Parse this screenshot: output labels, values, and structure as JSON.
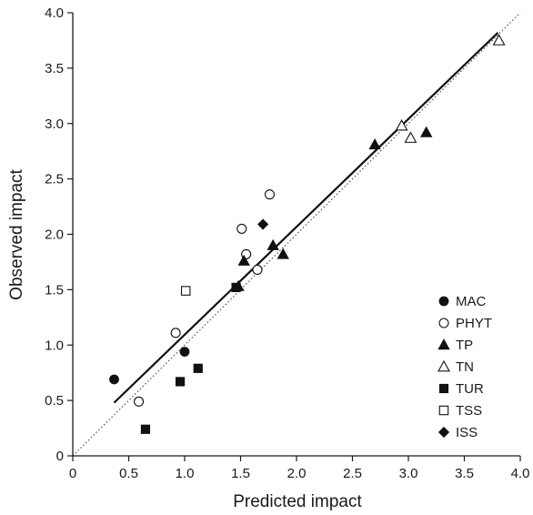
{
  "chart_data": {
    "type": "scatter",
    "xlabel": "Predicted impact",
    "ylabel": "Observed impact",
    "xlim": [
      0,
      4.0
    ],
    "ylim": [
      0,
      4.0
    ],
    "x_ticks": [
      "0",
      "0.5",
      "1.0",
      "1.5",
      "2.0",
      "2.5",
      "3.0",
      "3.5",
      "4.0"
    ],
    "y_ticks": [
      "0",
      "0.5",
      "1.0",
      "1.5",
      "2.0",
      "2.5",
      "3.0",
      "3.5",
      "4.0"
    ],
    "grid": false,
    "legend_position": "bottom-right",
    "series": [
      {
        "name": "MAC",
        "marker": "circle-filled",
        "points": [
          [
            0.37,
            0.69
          ],
          [
            1.0,
            0.94
          ]
        ]
      },
      {
        "name": "PHYT",
        "marker": "circle-open",
        "points": [
          [
            0.59,
            0.49
          ],
          [
            0.92,
            1.11
          ],
          [
            1.51,
            2.05
          ],
          [
            1.55,
            1.82
          ],
          [
            1.65,
            1.68
          ],
          [
            1.76,
            2.36
          ]
        ]
      },
      {
        "name": "TP",
        "marker": "triangle-filled",
        "points": [
          [
            1.48,
            1.53
          ],
          [
            1.53,
            1.76
          ],
          [
            1.79,
            1.9
          ],
          [
            1.88,
            1.82
          ],
          [
            2.7,
            2.81
          ],
          [
            3.16,
            2.92
          ]
        ]
      },
      {
        "name": "TN",
        "marker": "triangle-open",
        "points": [
          [
            2.94,
            2.98
          ],
          [
            3.02,
            2.87
          ],
          [
            3.81,
            3.75
          ]
        ]
      },
      {
        "name": "TUR",
        "marker": "square-filled",
        "points": [
          [
            0.65,
            0.24
          ],
          [
            0.96,
            0.67
          ],
          [
            1.12,
            0.79
          ],
          [
            1.46,
            1.52
          ]
        ]
      },
      {
        "name": "TSS",
        "marker": "square-open",
        "points": [
          [
            1.01,
            1.49
          ]
        ]
      },
      {
        "name": "ISS",
        "marker": "diamond-filled",
        "points": [
          [
            1.7,
            2.09
          ]
        ]
      }
    ],
    "regression_line": {
      "style": "solid",
      "x": [
        0.37,
        3.8
      ],
      "y": [
        0.48,
        3.82
      ]
    },
    "reference_line": {
      "style": "dotted",
      "x": [
        0,
        4.0
      ],
      "y": [
        0,
        4.0
      ]
    }
  }
}
